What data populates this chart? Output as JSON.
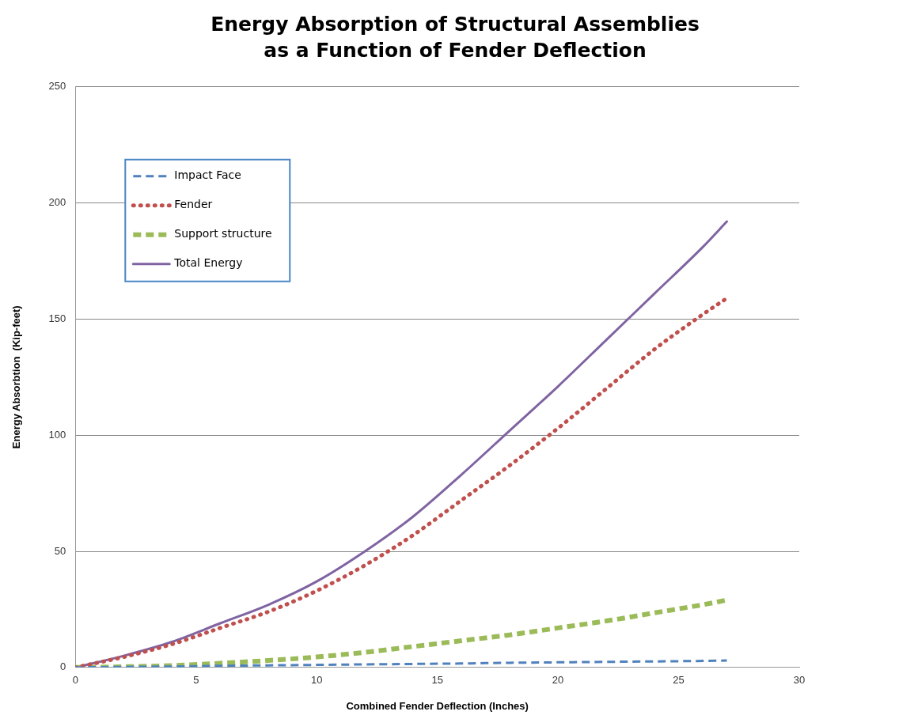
{
  "chart_data": {
    "type": "line",
    "title": "Energy Absorption of Structural Assemblies as a Function of Fender Deflection",
    "xlabel": "Combined Fender Deflection (Inches)",
    "ylabel": "Energy Absorbtion  (Kip-feet)",
    "x": [
      0,
      2,
      4,
      6,
      8,
      10,
      12,
      14,
      16,
      18,
      20,
      22,
      24,
      26,
      27
    ],
    "series": [
      {
        "name": "Impact Face",
        "color": "#4f81bd",
        "line_style": "dashed",
        "values": [
          0,
          0.2,
          0.4,
          0.7,
          0.9,
          1.1,
          1.3,
          1.5,
          1.7,
          2,
          2.2,
          2.4,
          2.6,
          2.8,
          3
        ]
      },
      {
        "name": "Fender",
        "color": "#c0504d",
        "line_style": "dotted",
        "values": [
          0,
          4.5,
          10,
          17,
          24,
          33,
          44,
          57,
          72,
          87,
          103,
          120,
          137,
          152,
          159
        ]
      },
      {
        "name": "Support structure",
        "color": "#9bbb59",
        "line_style": "dashed",
        "values": [
          0,
          0.3,
          0.8,
          1.8,
          3,
          4.5,
          6.5,
          9,
          11.5,
          14,
          17,
          20,
          23.5,
          27,
          29
        ]
      },
      {
        "name": "Total Energy",
        "color": "#8064a2",
        "line_style": "solid",
        "values": [
          0,
          5,
          11,
          19,
          27,
          37,
          50,
          65,
          83,
          102,
          121,
          141,
          161,
          181,
          192
        ]
      }
    ],
    "xlim": [
      0,
      30
    ],
    "xticks": [
      0,
      5,
      10,
      15,
      20,
      25,
      30
    ],
    "ylim": [
      0,
      250
    ],
    "yticks": [
      0,
      50,
      100,
      150,
      200,
      250
    ],
    "grid": "y",
    "legend": "top left",
    "marker": "none"
  }
}
